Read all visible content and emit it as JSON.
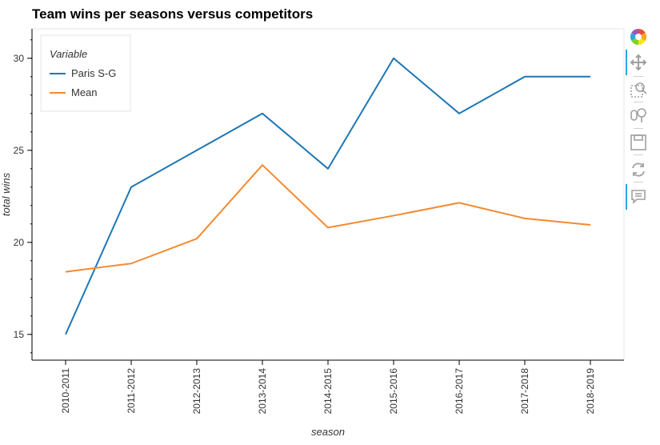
{
  "chart_data": {
    "type": "line",
    "title": "Team wins per seasons versus competitors",
    "xlabel": "season",
    "ylabel": "total wins",
    "categories": [
      "2010-2011",
      "2011-2012",
      "2012-2013",
      "2013-2014",
      "2014-2015",
      "2015-2016",
      "2016-2017",
      "2017-2018",
      "2018-2019"
    ],
    "ylim": [
      13.6,
      31.6
    ],
    "yticks": [
      15,
      20,
      25,
      30
    ],
    "legend": {
      "title": "Variable",
      "placement": "top-left"
    },
    "series": [
      {
        "name": "Paris S-G",
        "color": "#1f77b4",
        "values": [
          15,
          23,
          25,
          27,
          24,
          30,
          27,
          29,
          29
        ]
      },
      {
        "name": "Mean",
        "color": "#f58a2f",
        "values": [
          18.4,
          18.85,
          20.2,
          24.2,
          20.8,
          21.45,
          22.15,
          21.3,
          20.95
        ]
      }
    ],
    "grid": false
  },
  "toolbar": {
    "tools": [
      {
        "name": "bokeh-logo-icon",
        "active": false
      },
      {
        "name": "pan-icon",
        "active": true
      },
      {
        "name": "box-zoom-icon",
        "active": false
      },
      {
        "name": "wheel-zoom-icon",
        "active": false
      },
      {
        "name": "save-icon",
        "active": false
      },
      {
        "name": "reset-icon",
        "active": false
      },
      {
        "name": "hover-icon",
        "active": true
      }
    ]
  }
}
